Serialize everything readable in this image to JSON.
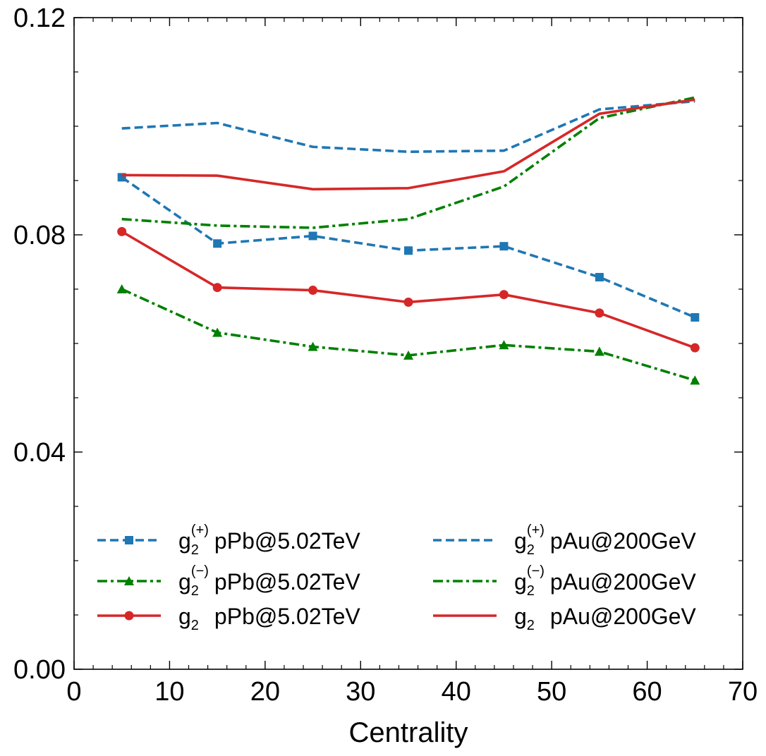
{
  "chart_data": {
    "type": "line",
    "title": "",
    "xlabel": "Centrality",
    "ylabel": "",
    "xlim": [
      0,
      70
    ],
    "ylim": [
      0.0,
      0.12
    ],
    "xticks": [
      0,
      10,
      20,
      30,
      40,
      50,
      60,
      70
    ],
    "xtick_labels": [
      "0",
      "10",
      "20",
      "30",
      "40",
      "50",
      "60",
      "70"
    ],
    "yticks": [
      0.0,
      0.04,
      0.08,
      0.12
    ],
    "ytick_labels": [
      "0.00",
      "0.04",
      "0.08",
      "0.12"
    ],
    "grid": false,
    "legend_position": "lower-center",
    "x": [
      5,
      15,
      25,
      35,
      45,
      55,
      65
    ],
    "series": [
      {
        "key": "g2p_ppb",
        "name": "g2(+) pPb@5.02TeV",
        "symbol": "g",
        "sub": "2",
        "sup": "(+)",
        "label": "pPb@5.02TeV",
        "color": "#1f77b4",
        "dash": "dashed",
        "marker": "square",
        "values": [
          0.0906,
          0.0784,
          0.0798,
          0.0771,
          0.0779,
          0.0722,
          0.0648
        ]
      },
      {
        "key": "g2m_ppb",
        "name": "g2(-) pPb@5.02TeV",
        "symbol": "g",
        "sub": "2",
        "sup": "(−)",
        "label": "pPb@5.02TeV",
        "color": "#008000",
        "dash": "dashdot",
        "marker": "triangle",
        "values": [
          0.07,
          0.062,
          0.0594,
          0.0578,
          0.0597,
          0.0585,
          0.0532
        ]
      },
      {
        "key": "g2_ppb",
        "name": "g2 pPb@5.02TeV",
        "symbol": "g",
        "sub": "2",
        "sup": "",
        "label": "pPb@5.02TeV",
        "color": "#d62728",
        "dash": "solid",
        "marker": "circle",
        "values": [
          0.0806,
          0.0703,
          0.0698,
          0.0676,
          0.069,
          0.0656,
          0.0592
        ]
      },
      {
        "key": "g2p_pau",
        "name": "g2(+) pAu@200GeV",
        "symbol": "g",
        "sub": "2",
        "sup": "(+)",
        "label": "pAu@200GeV",
        "color": "#1f77b4",
        "dash": "dashed",
        "marker": "none",
        "values": [
          0.0996,
          0.1006,
          0.0962,
          0.0953,
          0.0955,
          0.1031,
          0.1046
        ]
      },
      {
        "key": "g2m_pau",
        "name": "g2(-) pAu@200GeV",
        "symbol": "g",
        "sub": "2",
        "sup": "(−)",
        "label": "pAu@200GeV",
        "color": "#008000",
        "dash": "dashdot",
        "marker": "none",
        "values": [
          0.0829,
          0.0817,
          0.0813,
          0.0829,
          0.0889,
          0.1015,
          0.1053
        ]
      },
      {
        "key": "g2_pau",
        "name": "g2 pAu@200GeV",
        "symbol": "g",
        "sub": "2",
        "sup": "",
        "label": "pAu@200GeV",
        "color": "#d62728",
        "dash": "solid",
        "marker": "none",
        "values": [
          0.091,
          0.0909,
          0.0884,
          0.0886,
          0.0917,
          0.1023,
          0.1049
        ]
      }
    ],
    "legend_order": [
      "g2p_ppb",
      "g2m_ppb",
      "g2_ppb",
      "g2p_pau",
      "g2m_pau",
      "g2_pau"
    ]
  }
}
